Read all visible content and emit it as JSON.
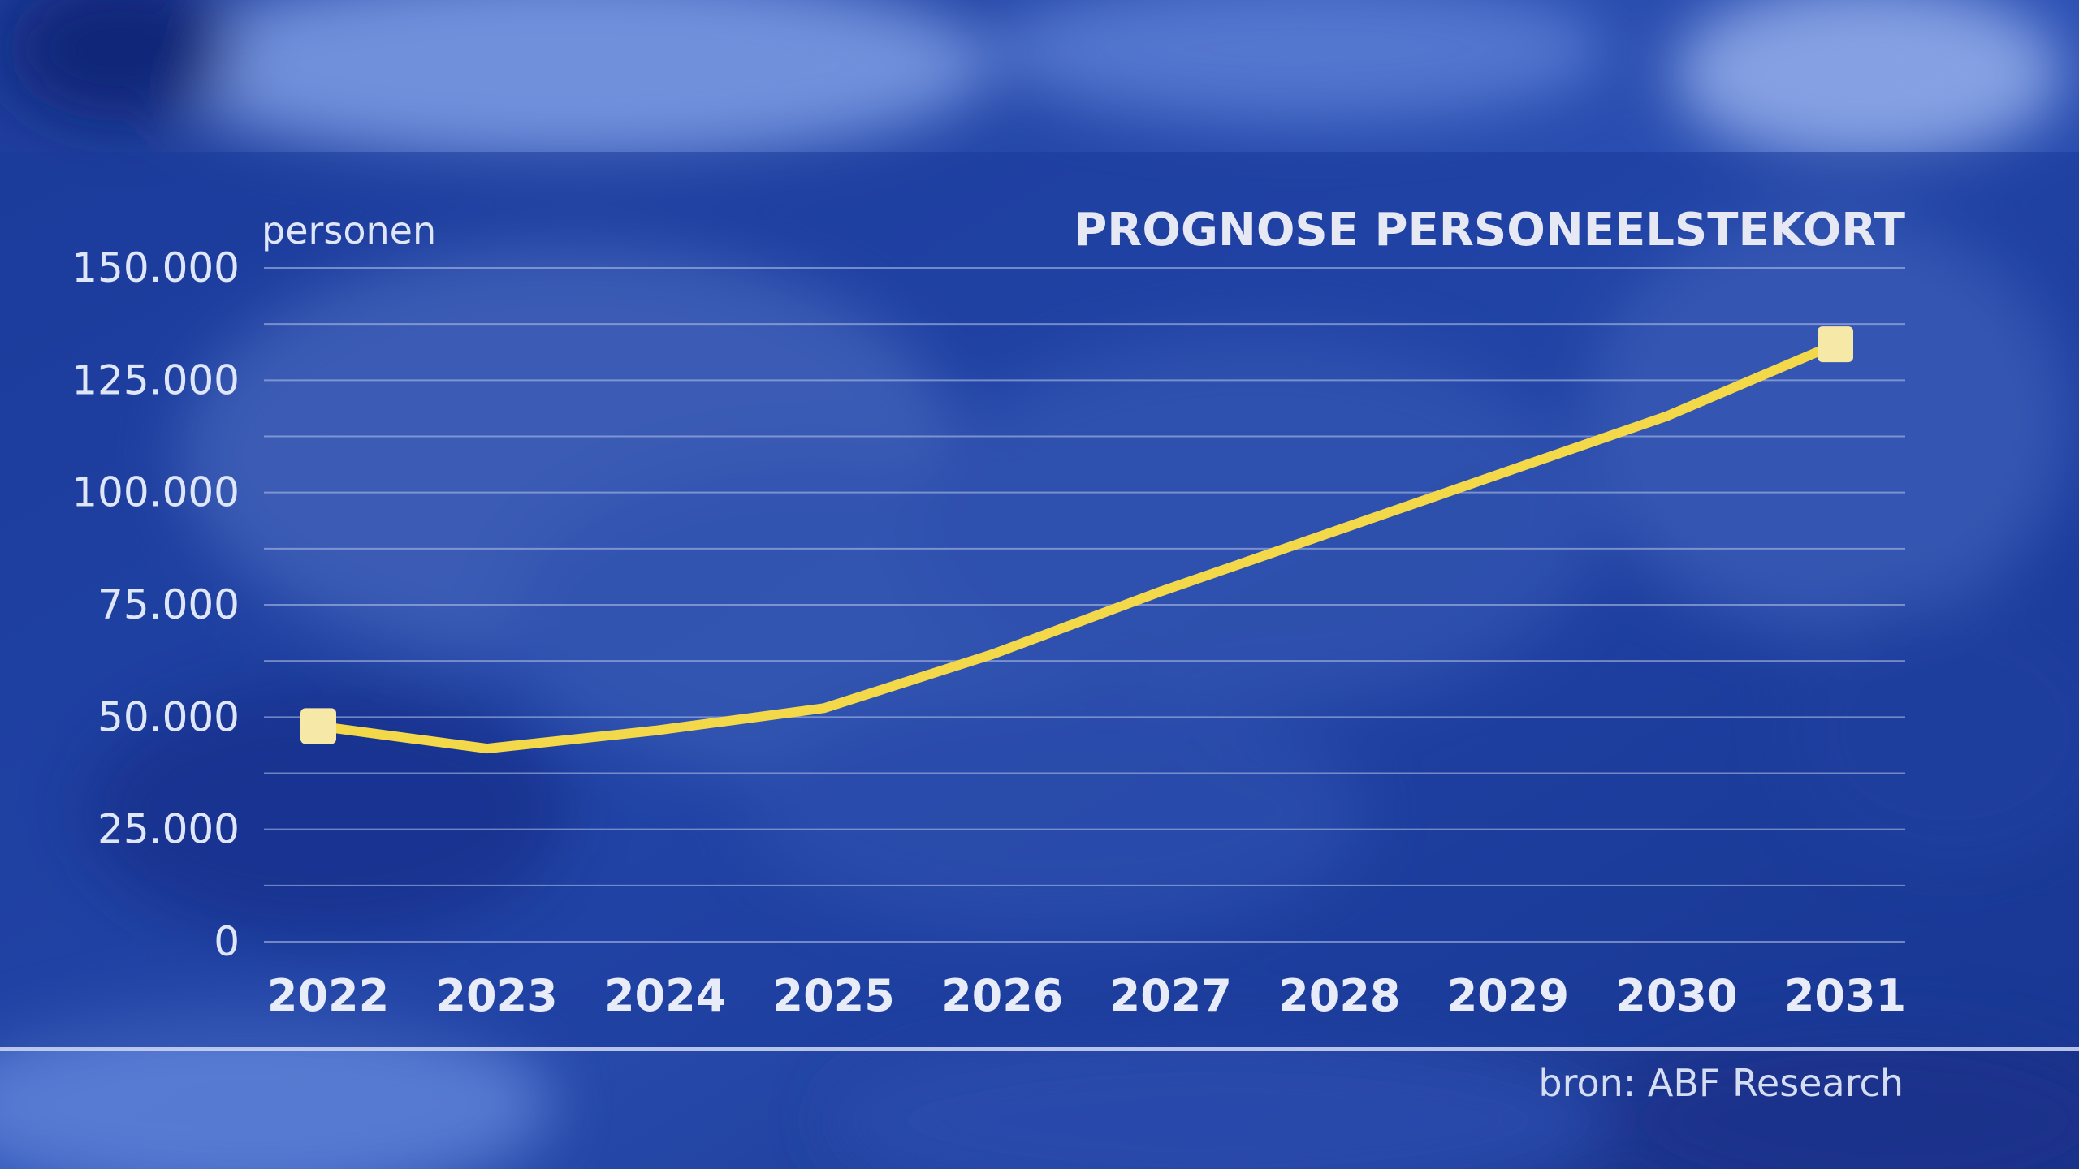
{
  "chart_data": {
    "type": "line",
    "title": "PROGNOSE PERSONEELSTEKORT",
    "ylabel": "personen",
    "source": "bron: ABF Research",
    "x": [
      "2022",
      "2023",
      "2024",
      "2025",
      "2026",
      "2027",
      "2028",
      "2029",
      "2030",
      "2031"
    ],
    "series": [
      {
        "values": [
          48000,
          43000,
          47000,
          52000,
          64000,
          78000,
          91000,
          104000,
          117000,
          133000
        ]
      }
    ],
    "ylim": [
      0,
      150000
    ],
    "yticks": [
      {
        "value": 0,
        "label": "0"
      },
      {
        "value": 25000,
        "label": "25.000"
      },
      {
        "value": 50000,
        "label": "50.000"
      },
      {
        "value": 75000,
        "label": "75.000"
      },
      {
        "value": 100000,
        "label": "100.000"
      },
      {
        "value": 125000,
        "label": "125.000"
      },
      {
        "value": 150000,
        "label": "150.000"
      }
    ],
    "minor_gridline_step": 12500,
    "grid": true,
    "endpoint_markers": true,
    "colors": {
      "line": "#f3d84a",
      "marker": "#f6e9a8",
      "gridline": "#b8c6ea",
      "panel": "#1c3c9c"
    }
  }
}
